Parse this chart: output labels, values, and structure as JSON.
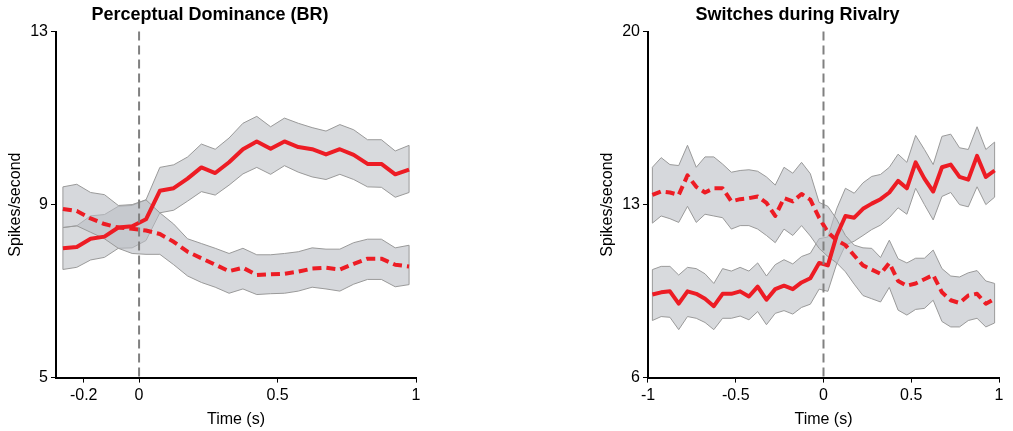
{
  "chart_data": [
    {
      "type": "line",
      "title": "Perceptual Dominance (BR)",
      "xlabel": "Time (s)",
      "ylabel": "Spikes/second",
      "x": [
        -0.275,
        -0.225,
        -0.175,
        -0.125,
        -0.075,
        -0.025,
        0.025,
        0.075,
        0.125,
        0.175,
        0.225,
        0.275,
        0.325,
        0.375,
        0.425,
        0.475,
        0.525,
        0.575,
        0.625,
        0.675,
        0.725,
        0.775,
        0.825,
        0.875,
        0.925,
        0.975
      ],
      "series": [
        {
          "color": "#ed1c24",
          "line_style": "solid",
          "values": [
            7.99,
            8.02,
            8.21,
            8.26,
            8.47,
            8.5,
            8.66,
            9.32,
            9.38,
            9.6,
            9.86,
            9.73,
            9.98,
            10.28,
            10.46,
            10.29,
            10.46,
            10.33,
            10.28,
            10.16,
            10.28,
            10.15,
            9.94,
            9.94,
            9.7,
            9.81
          ],
          "upper": [
            8.47,
            8.51,
            8.74,
            8.77,
            8.96,
            8.98,
            9.11,
            9.86,
            9.92,
            10.1,
            10.4,
            10.28,
            10.54,
            10.88,
            11.04,
            10.8,
            11.0,
            10.88,
            10.78,
            10.7,
            10.85,
            10.73,
            10.5,
            10.5,
            10.24,
            10.37
          ],
          "lower": [
            7.5,
            7.55,
            7.72,
            7.78,
            7.99,
            8.0,
            8.17,
            8.81,
            8.87,
            9.08,
            9.3,
            9.22,
            9.45,
            9.71,
            9.86,
            9.7,
            9.9,
            9.75,
            9.64,
            9.58,
            9.7,
            9.58,
            9.41,
            9.4,
            9.17,
            9.28
          ]
        },
        {
          "color": "#ed1c24",
          "line_style": "dashed",
          "values": [
            8.9,
            8.85,
            8.68,
            8.55,
            8.47,
            8.44,
            8.4,
            8.32,
            8.14,
            7.91,
            7.76,
            7.61,
            7.46,
            7.54,
            7.37,
            7.39,
            7.4,
            7.45,
            7.52,
            7.54,
            7.5,
            7.63,
            7.75,
            7.75,
            7.61,
            7.57
          ],
          "upper": [
            9.41,
            9.47,
            9.28,
            9.23,
            8.98,
            9.0,
            9.11,
            8.81,
            8.55,
            8.21,
            8.1,
            7.99,
            7.87,
            7.99,
            7.84,
            7.84,
            7.87,
            7.91,
            8.0,
            7.97,
            7.97,
            8.12,
            8.2,
            8.2,
            8.0,
            8.06
          ],
          "lower": [
            8.47,
            8.51,
            8.36,
            8.21,
            7.99,
            7.87,
            7.85,
            7.85,
            7.61,
            7.35,
            7.2,
            7.09,
            6.95,
            7.05,
            6.92,
            6.94,
            6.95,
            7.0,
            7.09,
            7.05,
            7.0,
            7.16,
            7.27,
            7.27,
            7.1,
            7.15
          ]
        }
      ],
      "xlim": [
        -0.3,
        1
      ],
      "xticks": [
        -0.2,
        0,
        0.5,
        1
      ],
      "ylim": [
        5,
        13
      ],
      "yticks": [
        5,
        9,
        13
      ],
      "ref_lines": [
        {
          "axis": "x",
          "value": 0,
          "color": "#808080",
          "line_style": "dashed"
        }
      ],
      "grid": false,
      "legend": false,
      "marker": "none"
    },
    {
      "type": "line",
      "title": "Switches during Rivalry",
      "xlabel": "Time (s)",
      "ylabel": "Spikes/second",
      "x": [
        -0.975,
        -0.925,
        -0.875,
        -0.825,
        -0.775,
        -0.725,
        -0.675,
        -0.625,
        -0.575,
        -0.525,
        -0.475,
        -0.425,
        -0.375,
        -0.325,
        -0.275,
        -0.225,
        -0.175,
        -0.125,
        -0.075,
        -0.025,
        0.025,
        0.075,
        0.125,
        0.175,
        0.225,
        0.275,
        0.325,
        0.375,
        0.425,
        0.475,
        0.525,
        0.575,
        0.625,
        0.675,
        0.725,
        0.775,
        0.825,
        0.875,
        0.925,
        0.975
      ],
      "series": [
        {
          "color": "#ed1c24",
          "line_style": "solid",
          "values": [
            9.36,
            9.45,
            9.49,
            8.99,
            9.49,
            9.39,
            9.19,
            8.89,
            9.39,
            9.39,
            9.49,
            9.28,
            9.68,
            9.15,
            9.58,
            9.72,
            9.58,
            9.85,
            10.02,
            10.64,
            10.54,
            11.75,
            12.54,
            12.47,
            12.83,
            13.04,
            13.22,
            13.49,
            13.96,
            13.66,
            14.71,
            14.05,
            13.53,
            14.51,
            14.62,
            14.12,
            14.01,
            14.97,
            14.12,
            14.38
          ],
          "upper": [
            10.37,
            10.5,
            10.5,
            10.15,
            10.46,
            10.41,
            10.2,
            9.81,
            10.41,
            10.31,
            10.46,
            10.31,
            10.64,
            10.11,
            10.57,
            10.77,
            10.6,
            10.9,
            11.03,
            11.62,
            11.69,
            12.83,
            13.66,
            13.46,
            13.88,
            14.14,
            14.22,
            14.51,
            15.04,
            14.71,
            15.8,
            15.23,
            14.62,
            15.76,
            15.85,
            15.3,
            15.23,
            16.15,
            15.23,
            15.53
          ],
          "lower": [
            8.31,
            8.47,
            8.44,
            7.94,
            8.47,
            8.4,
            8.23,
            7.94,
            8.4,
            8.4,
            8.49,
            8.34,
            8.67,
            8.14,
            8.6,
            8.71,
            8.57,
            8.84,
            8.97,
            9.58,
            9.49,
            10.6,
            11.36,
            11.52,
            11.75,
            11.99,
            12.17,
            12.47,
            12.87,
            12.61,
            13.66,
            13.0,
            12.38,
            13.33,
            13.49,
            13.0,
            12.91,
            13.72,
            13.0,
            13.3
          ]
        },
        {
          "color": "#ed1c24",
          "line_style": "dashed",
          "values": [
            13.39,
            13.53,
            13.49,
            13.39,
            14.18,
            13.72,
            13.49,
            13.66,
            13.66,
            13.13,
            13.22,
            13.26,
            13.33,
            13.07,
            12.54,
            13.26,
            13.13,
            13.43,
            13.2,
            12.47,
            11.88,
            11.56,
            11.36,
            10.94,
            10.54,
            10.37,
            10.2,
            10.64,
            9.91,
            9.72,
            9.81,
            9.98,
            10.15,
            9.45,
            9.13,
            9.02,
            9.32,
            9.39,
            8.99,
            9.19
          ],
          "upper": [
            14.51,
            14.9,
            14.62,
            14.58,
            15.4,
            14.51,
            14.93,
            14.93,
            14.64,
            14.31,
            14.38,
            14.41,
            14.35,
            14.12,
            13.79,
            14.51,
            14.27,
            14.71,
            14.25,
            13.09,
            12.93,
            12.41,
            11.75,
            11.36,
            11.25,
            11.23,
            10.86,
            11.56,
            10.81,
            10.64,
            10.83,
            10.83,
            11.16,
            10.41,
            10.11,
            10.07,
            10.24,
            10.33,
            9.91,
            9.81
          ],
          "lower": [
            12.25,
            12.54,
            12.43,
            12.28,
            12.93,
            12.28,
            12.61,
            12.54,
            12.47,
            12.01,
            12.15,
            12.15,
            12.01,
            11.75,
            11.46,
            12.01,
            11.75,
            12.15,
            11.73,
            11.23,
            10.9,
            10.64,
            10.28,
            9.78,
            9.32,
            9.19,
            9.06,
            9.65,
            8.73,
            8.53,
            8.76,
            8.8,
            9.13,
            8.27,
            8.05,
            8.05,
            8.31,
            8.4,
            8.05,
            8.21
          ]
        }
      ],
      "xlim": [
        -1,
        1
      ],
      "xticks": [
        -1,
        -0.5,
        0,
        0.5,
        1
      ],
      "ylim": [
        6,
        20
      ],
      "yticks": [
        6,
        13,
        20
      ],
      "ref_lines": [
        {
          "axis": "x",
          "value": 0,
          "color": "#808080",
          "line_style": "dashed"
        }
      ],
      "grid": false,
      "legend": false,
      "marker": "none"
    }
  ]
}
